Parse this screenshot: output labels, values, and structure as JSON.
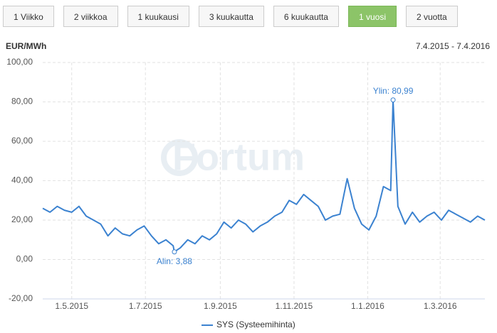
{
  "buttons": [
    "1 Viikko",
    "2 viikkoa",
    "1 kuukausi",
    "3 kuukautta",
    "6 kuukautta",
    "1 vuosi",
    "2 vuotta"
  ],
  "selected_button": 5,
  "chart_data": {
    "type": "line",
    "y_label": "EUR/MWh",
    "subtitle": "7.4.2015 - 7.4.2016",
    "watermark": "Fortum",
    "x": [
      "7.4.2015",
      "13.4.2015",
      "19.4.2015",
      "25.4.2015",
      "1.5.2015",
      "7.5.2015",
      "13.5.2015",
      "19.5.2015",
      "25.5.2015",
      "31.5.2015",
      "6.6.2015",
      "12.6.2015",
      "18.6.2015",
      "24.6.2015",
      "30.6.2015",
      "6.7.2015",
      "12.7.2015",
      "18.7.2015",
      "24.7.2015",
      "25.7.2015",
      "30.7.2015",
      "5.8.2015",
      "11.8.2015",
      "17.8.2015",
      "23.8.2015",
      "29.8.2015",
      "4.9.2015",
      "10.9.2015",
      "16.9.2015",
      "22.9.2015",
      "28.9.2015",
      "4.10.2015",
      "10.10.2015",
      "16.10.2015",
      "22.10.2015",
      "28.10.2015",
      "3.11.2015",
      "9.11.2015",
      "15.11.2015",
      "21.11.2015",
      "27.11.2015",
      "3.12.2015",
      "9.12.2015",
      "15.12.2015",
      "21.12.2015",
      "27.12.2015",
      "2.1.2016",
      "8.1.2016",
      "14.1.2016",
      "20.1.2016",
      "22.1.2016",
      "26.1.2016",
      "1.2.2016",
      "7.2.2016",
      "13.2.2016",
      "19.2.2016",
      "25.2.2016",
      "2.3.2016",
      "8.3.2016",
      "14.3.2016",
      "20.3.2016",
      "26.3.2016",
      "1.4.2016",
      "7.4.2016"
    ],
    "series": [
      {
        "name": "SYS (Systeemihinta)",
        "color": "#3b82d0",
        "values": [
          26,
          24,
          27,
          25,
          24,
          27,
          22,
          20,
          18,
          12,
          16,
          13,
          12,
          15,
          17,
          12,
          8,
          10,
          7,
          3.88,
          6,
          10,
          8,
          12,
          10,
          13,
          19,
          16,
          20,
          18,
          14,
          17,
          19,
          22,
          24,
          30,
          28,
          33,
          30,
          27,
          20,
          22,
          23,
          41,
          26,
          18,
          15,
          22,
          37,
          35,
          80.99,
          27,
          18,
          24,
          19,
          22,
          24,
          20,
          25,
          23,
          21,
          19,
          22,
          20
        ]
      }
    ],
    "annotations": [
      {
        "label": "Ylin: 80,99",
        "x": "22.1.2016",
        "value": 80.99
      },
      {
        "label": "Alin: 3,88",
        "x": "25.7.2015",
        "value": 3.88
      }
    ],
    "xlim": [
      "7.4.2015",
      "7.4.2016"
    ],
    "xticks": [
      "1.5.2015",
      "1.7.2015",
      "1.9.2015",
      "1.11.2015",
      "1.1.2016",
      "1.3.2016"
    ],
    "ylim": [
      -20,
      100
    ],
    "yticks": [
      {
        "value": -20,
        "label": "-20,00"
      },
      {
        "value": 0,
        "label": "0,00"
      },
      {
        "value": 20,
        "label": "20,00"
      },
      {
        "value": 40,
        "label": "40,00"
      },
      {
        "value": 60,
        "label": "60,00"
      },
      {
        "value": 80,
        "label": "80,00"
      },
      {
        "value": 100,
        "label": "100,00"
      }
    ],
    "grid": true
  }
}
